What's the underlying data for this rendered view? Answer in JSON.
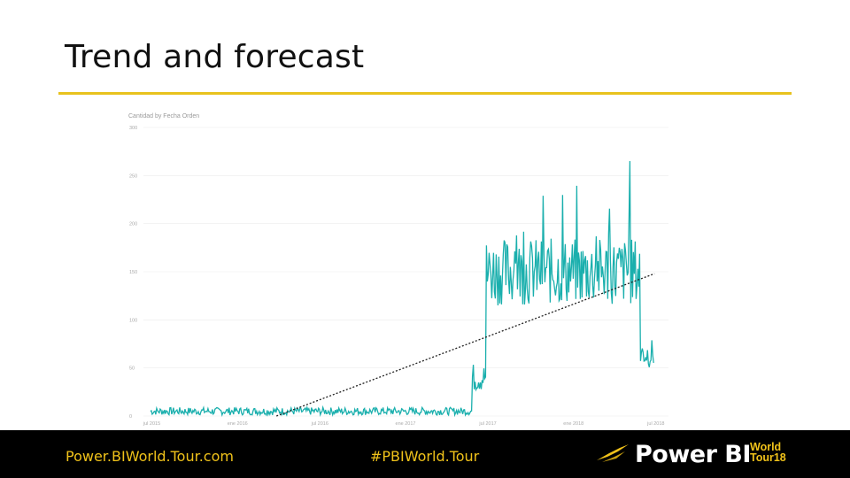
{
  "slide": {
    "title": "Trend and forecast"
  },
  "footer": {
    "website": "Power.BIWorld.Tour.com",
    "hashtag": "#PBIWorld.Tour",
    "logo_text": "Power BI",
    "logo_badge_line1": "World",
    "logo_badge_line2": "Tour18"
  },
  "colors": {
    "accent": "#e8c21e",
    "series": "#1aafad",
    "trend": "#222222",
    "footer_bg": "#000000",
    "footer_text": "#f0c21a"
  },
  "chart_data": {
    "type": "line",
    "title": "Cantidad by Fecha Orden",
    "ylim": [
      0,
      300
    ],
    "y_ticks": [
      0,
      50,
      100,
      150,
      200,
      250,
      300
    ],
    "x_tick_labels": [
      "jul 2015",
      "ene 2016",
      "jul 2016",
      "ene 2017",
      "jul 2017",
      "ene 2018",
      "jul 2018"
    ],
    "grid": true,
    "series": [
      {
        "segments": [
          {
            "x_start": "2015-07",
            "x_end": "2017-06",
            "level": 5,
            "noise": 4
          },
          {
            "x_start": "2017-06",
            "x_end": "2017-07",
            "level": 40,
            "noise": 15
          },
          {
            "x_start": "2017-07",
            "x_end": "2018-06",
            "level": 150,
            "noise": 35
          },
          {
            "x_start": "2018-06",
            "x_end": "2018-07",
            "level": 65,
            "noise": 15
          }
        ],
        "peak": 265
      }
    ],
    "trend_line": {
      "type": "dotted",
      "start": {
        "x": "2016-04",
        "y": 0
      },
      "end": {
        "x": "2018-07",
        "y": 148
      }
    }
  }
}
